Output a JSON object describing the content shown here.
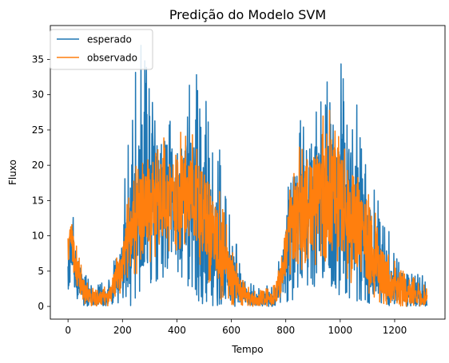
{
  "chart_data": {
    "type": "line",
    "title": "Predição do Modelo SVM",
    "xlabel": "Tempo",
    "ylabel": "Fluxo",
    "xlim": [
      -65,
      1385
    ],
    "ylim": [
      -1.8,
      39.8
    ],
    "x_ticks": [
      0,
      200,
      400,
      600,
      800,
      1000,
      1200
    ],
    "y_ticks": [
      0,
      5,
      10,
      15,
      20,
      25,
      30,
      35
    ],
    "grid": false,
    "legend": "top-left",
    "n_points": 1320,
    "series": [
      {
        "name": "esperado",
        "color": "#1f77b4",
        "envelope": [
          {
            "x": 0,
            "low": 2,
            "high": 12,
            "mean": 8
          },
          {
            "x": 15,
            "low": 2,
            "high": 15,
            "mean": 9
          },
          {
            "x": 30,
            "low": 1,
            "high": 10,
            "mean": 5
          },
          {
            "x": 60,
            "low": 0,
            "high": 5,
            "mean": 2
          },
          {
            "x": 100,
            "low": 0,
            "high": 3,
            "mean": 1
          },
          {
            "x": 150,
            "low": 0,
            "high": 4,
            "mean": 1.5
          },
          {
            "x": 200,
            "low": 0,
            "high": 14,
            "mean": 6
          },
          {
            "x": 230,
            "low": 0,
            "high": 30,
            "mean": 12
          },
          {
            "x": 270,
            "low": 2,
            "high": 38,
            "mean": 15
          },
          {
            "x": 320,
            "low": 3,
            "high": 28,
            "mean": 16
          },
          {
            "x": 380,
            "low": 5,
            "high": 30,
            "mean": 16
          },
          {
            "x": 430,
            "low": 3,
            "high": 32,
            "mean": 15
          },
          {
            "x": 480,
            "low": 0,
            "high": 36,
            "mean": 14
          },
          {
            "x": 520,
            "low": 0,
            "high": 30,
            "mean": 10
          },
          {
            "x": 560,
            "low": 0,
            "high": 22,
            "mean": 8
          },
          {
            "x": 600,
            "low": 0,
            "high": 12,
            "mean": 4
          },
          {
            "x": 650,
            "low": 0,
            "high": 4,
            "mean": 1.5
          },
          {
            "x": 700,
            "low": 0,
            "high": 3,
            "mean": 1
          },
          {
            "x": 760,
            "low": 0,
            "high": 3,
            "mean": 1
          },
          {
            "x": 790,
            "low": 0,
            "high": 12,
            "mean": 5
          },
          {
            "x": 820,
            "low": 0,
            "high": 26,
            "mean": 11
          },
          {
            "x": 870,
            "low": 2,
            "high": 30,
            "mean": 14
          },
          {
            "x": 930,
            "low": 3,
            "high": 32,
            "mean": 15
          },
          {
            "x": 980,
            "low": 2,
            "high": 34,
            "mean": 15
          },
          {
            "x": 1020,
            "low": 0,
            "high": 36,
            "mean": 14
          },
          {
            "x": 1070,
            "low": 0,
            "high": 28,
            "mean": 11
          },
          {
            "x": 1120,
            "low": 0,
            "high": 18,
            "mean": 7
          },
          {
            "x": 1170,
            "low": 0,
            "high": 12,
            "mean": 4
          },
          {
            "x": 1230,
            "low": 0,
            "high": 5,
            "mean": 2
          },
          {
            "x": 1280,
            "low": 0,
            "high": 5,
            "mean": 1.5
          },
          {
            "x": 1320,
            "low": 0,
            "high": 4,
            "mean": 1
          }
        ]
      },
      {
        "name": "observado",
        "color": "#ff7f0e",
        "envelope": [
          {
            "x": 0,
            "low": 5,
            "high": 11,
            "mean": 8
          },
          {
            "x": 15,
            "low": 5,
            "high": 12,
            "mean": 9
          },
          {
            "x": 30,
            "low": 2,
            "high": 9,
            "mean": 5
          },
          {
            "x": 60,
            "low": 0,
            "high": 4,
            "mean": 2
          },
          {
            "x": 100,
            "low": 0,
            "high": 2.5,
            "mean": 1
          },
          {
            "x": 150,
            "low": 0,
            "high": 3,
            "mean": 1.5
          },
          {
            "x": 200,
            "low": 2,
            "high": 10,
            "mean": 6
          },
          {
            "x": 230,
            "low": 4,
            "high": 18,
            "mean": 11
          },
          {
            "x": 270,
            "low": 5,
            "high": 22,
            "mean": 14
          },
          {
            "x": 320,
            "low": 7,
            "high": 24,
            "mean": 15
          },
          {
            "x": 380,
            "low": 8,
            "high": 25,
            "mean": 16
          },
          {
            "x": 430,
            "low": 7,
            "high": 26,
            "mean": 16
          },
          {
            "x": 480,
            "low": 5,
            "high": 25,
            "mean": 14
          },
          {
            "x": 520,
            "low": 3,
            "high": 20,
            "mean": 11
          },
          {
            "x": 560,
            "low": 1,
            "high": 16,
            "mean": 8
          },
          {
            "x": 600,
            "low": 0,
            "high": 9,
            "mean": 4
          },
          {
            "x": 650,
            "low": 0,
            "high": 3,
            "mean": 1.5
          },
          {
            "x": 700,
            "low": 0,
            "high": 2.5,
            "mean": 1
          },
          {
            "x": 760,
            "low": 0,
            "high": 3,
            "mean": 1
          },
          {
            "x": 790,
            "low": 2,
            "high": 10,
            "mean": 6
          },
          {
            "x": 820,
            "low": 4,
            "high": 20,
            "mean": 11
          },
          {
            "x": 870,
            "low": 5,
            "high": 25,
            "mean": 14
          },
          {
            "x": 930,
            "low": 6,
            "high": 28,
            "mean": 16
          },
          {
            "x": 980,
            "low": 5,
            "high": 29,
            "mean": 16
          },
          {
            "x": 1020,
            "low": 4,
            "high": 27,
            "mean": 14
          },
          {
            "x": 1070,
            "low": 2,
            "high": 22,
            "mean": 11
          },
          {
            "x": 1120,
            "low": 1,
            "high": 15,
            "mean": 7
          },
          {
            "x": 1170,
            "low": 0,
            "high": 9,
            "mean": 4
          },
          {
            "x": 1230,
            "low": 0,
            "high": 5,
            "mean": 2
          },
          {
            "x": 1280,
            "low": 0,
            "high": 4,
            "mean": 1.5
          },
          {
            "x": 1320,
            "low": 0,
            "high": 3,
            "mean": 1
          }
        ]
      }
    ]
  }
}
